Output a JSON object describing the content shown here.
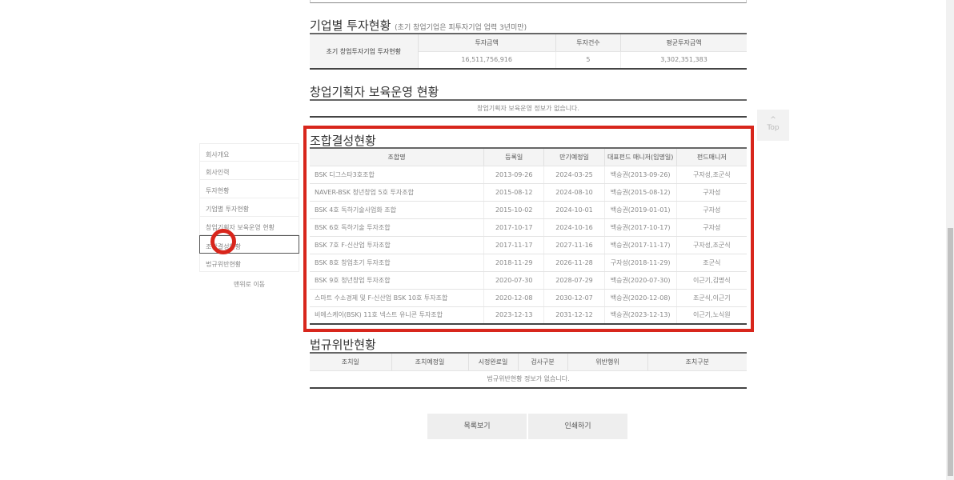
{
  "invest_by_company": {
    "title": "기업별 투자현황",
    "subtitle": "(초기 창업기업은 피투자기업 업력 3년미만)",
    "row_header": "초기 창업투자기업 투자현황",
    "columns": [
      "투자금액",
      "투자건수",
      "평균투자금액"
    ],
    "values": [
      "16,511,756,916",
      "5",
      "3,302,351,383"
    ]
  },
  "incubation": {
    "title": "창업기획자 보육운영 현황",
    "empty": "창업기획자 보육운영 정보가 없습니다."
  },
  "funds": {
    "title": "조합결성현황",
    "columns": [
      "조합명",
      "등록일",
      "만기예정일",
      "대표펀드 매니저(임명일)",
      "펀드매니저"
    ],
    "rows": [
      [
        "BSK 디그스타3호조합",
        "2013-09-26",
        "2024-03-25",
        "백승권(2013-09-26)",
        "구자성,조군식"
      ],
      [
        "NAVER-BSK 청년창업 5호 투자조합",
        "2015-08-12",
        "2024-08-10",
        "백승권(2015-08-12)",
        "구자성"
      ],
      [
        "BSK 4호 독하기술사업화 조합",
        "2015-10-02",
        "2024-10-01",
        "백승권(2019-01-01)",
        "구자성"
      ],
      [
        "BSK 6호 독하기술 투자조합",
        "2017-10-17",
        "2024-10-16",
        "백승권(2017-10-17)",
        "구자성"
      ],
      [
        "BSK 7호 F-신산업 투자조합",
        "2017-11-17",
        "2027-11-16",
        "백승권(2017-11-17)",
        "구자성,조군식"
      ],
      [
        "BSK 8호 창업초기 투자조합",
        "2018-11-29",
        "2026-11-28",
        "구자성(2018-11-29)",
        "조군식"
      ],
      [
        "BSK 9호 청년창업 투자조합",
        "2020-07-30",
        "2028-07-29",
        "백승권(2020-07-30)",
        "이근기,김명식"
      ],
      [
        "스마트 수소경제 및 F-신산업 BSK 10호 투자조합",
        "2020-12-08",
        "2030-12-07",
        "백승권(2020-12-08)",
        "조군식,이근기"
      ],
      [
        "비에스케이(BSK) 11호 넥스트 유니콘 투자조합",
        "2023-12-13",
        "2031-12-12",
        "백승권(2023-12-13)",
        "이근기,노식원"
      ]
    ]
  },
  "violations": {
    "title": "법규위반현황",
    "columns": [
      "조치일",
      "조치예정일",
      "시정완료일",
      "검사구분",
      "위반행위",
      "조치구분"
    ],
    "empty": "법규위반현황 정보가 없습니다."
  },
  "sidebar": {
    "items": [
      "회사개요",
      "회사인력",
      "투자현황",
      "기업별 투자현황",
      "창업기획자 보육운영 현황",
      "조합결성현황",
      "법규위반현황"
    ],
    "active": 5,
    "to_top": "맨위로 이동"
  },
  "top_button": {
    "arrow": "^",
    "label": "Top"
  },
  "buttons": {
    "list": "목록보기",
    "print": "인쇄하기"
  },
  "highlight_color": "#d8261c"
}
